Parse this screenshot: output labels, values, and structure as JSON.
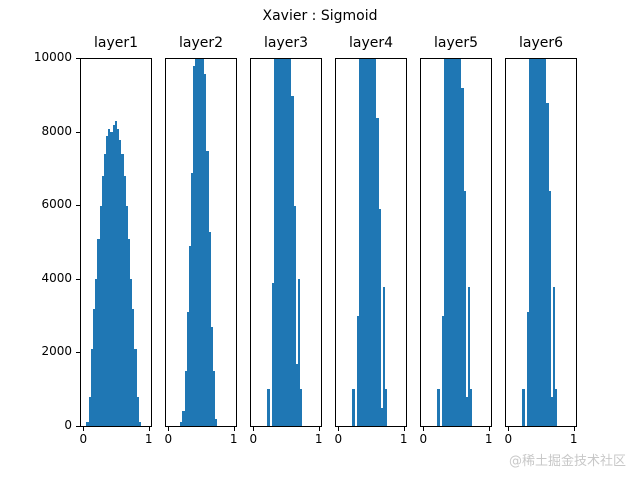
{
  "chart_data": {
    "type": "bar",
    "title": "Xavier : Sigmoid",
    "ylim": [
      0,
      10000
    ],
    "yticks": [
      "0",
      "2000",
      "4000",
      "6000",
      "8000",
      "10000"
    ],
    "xticks": [
      "0",
      "1"
    ],
    "xlim": [
      -0.05,
      1.05
    ],
    "bins": 30,
    "bin_range": [
      0,
      1
    ],
    "color": "#1f77b4",
    "panels": [
      {
        "title": "layer1",
        "values": [
          0,
          100,
          800,
          2100,
          3200,
          4000,
          5100,
          6000,
          6800,
          7400,
          7900,
          8100,
          8000,
          8200,
          8300,
          8100,
          7800,
          7400,
          6800,
          6000,
          5100,
          4000,
          3200,
          2100,
          800,
          100,
          0,
          0,
          0,
          0
        ]
      },
      {
        "title": "layer2",
        "values": [
          0,
          0,
          0,
          0,
          0,
          100,
          400,
          1500,
          3100,
          4900,
          6900,
          9800,
          10000,
          10000,
          10000,
          10000,
          9600,
          7500,
          5300,
          2700,
          1500,
          200,
          0,
          0,
          0,
          0,
          0,
          0,
          0,
          0
        ]
      },
      {
        "title": "layer3",
        "values": [
          0,
          0,
          0,
          0,
          0,
          0,
          1000,
          0,
          3900,
          10000,
          10000,
          10000,
          10000,
          10000,
          10000,
          10000,
          10000,
          9000,
          6000,
          1700,
          4000,
          1000,
          0,
          0,
          0,
          0,
          0,
          0,
          0,
          0
        ]
      },
      {
        "title": "layer4",
        "values": [
          0,
          0,
          0,
          0,
          0,
          0,
          1000,
          0,
          3000,
          10000,
          10000,
          10000,
          10000,
          10000,
          10000,
          10000,
          10000,
          8400,
          5900,
          500,
          3800,
          1000,
          0,
          0,
          0,
          0,
          0,
          0,
          0,
          0
        ]
      },
      {
        "title": "layer5",
        "values": [
          0,
          0,
          0,
          0,
          0,
          0,
          1000,
          0,
          3000,
          10000,
          10000,
          10000,
          10000,
          10000,
          10000,
          10000,
          10000,
          9200,
          6400,
          800,
          3800,
          1000,
          0,
          0,
          0,
          0,
          0,
          0,
          0,
          0
        ]
      },
      {
        "title": "layer6",
        "values": [
          0,
          0,
          0,
          0,
          0,
          0,
          1000,
          0,
          3100,
          10000,
          10000,
          10000,
          10000,
          10000,
          10000,
          10000,
          10000,
          8800,
          6400,
          800,
          3800,
          1000,
          0,
          0,
          0,
          0,
          0,
          0,
          0,
          0
        ]
      }
    ]
  },
  "watermark": "@稀土掘金技术社区"
}
